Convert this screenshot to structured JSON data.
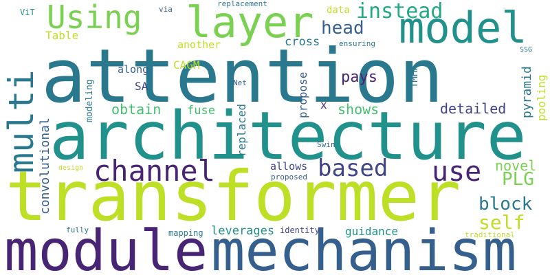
{
  "words": {
    "attention": "attention",
    "architecture": "architecture",
    "transformer": "transformer",
    "module": "module",
    "mechanism": "mechanism",
    "multi": "multi",
    "using": "Using",
    "layer": "layer",
    "model": "model",
    "instead": "instead",
    "head": "head",
    "channel": "channel",
    "based": "based",
    "use": "use",
    "block": "block",
    "self": "self",
    "plg": "PLG",
    "novel": "novel",
    "detailed": "detailed",
    "shows": "shows",
    "pays": "pays",
    "obtain": "obtain",
    "fuse": "fuse",
    "convolutional": "convolutional",
    "cross": "cross",
    "another": "another",
    "ensuring": "ensuring",
    "data": "data",
    "replacement": "replacement",
    "via": "via",
    "vit": "ViT",
    "table": "Table",
    "cagm": "CAGM",
    "along": "along",
    "net": "Net",
    "sa": "SA",
    "x": "x",
    "ssg": "SSG",
    "swin": "Swin",
    "allows": "allows",
    "proposed": "proposed",
    "design": "design",
    "leverages": "leverages",
    "identity": "identity",
    "guidance": "guidance",
    "mapping": "mapping",
    "fully": "fully",
    "traditional": "traditional",
    "modeling": "modeling",
    "replaced": "replaced",
    "propose": "propose",
    "tmha": "TMHA",
    "pyramid": "pyramid",
    "pooling": "pooling"
  },
  "colors": {
    "yellow_green": "#bddf26",
    "light_green": "#7ad151",
    "green": "#44bf70",
    "teal_green": "#22a884",
    "teal": "#21918c",
    "blue_teal": "#2a788e",
    "slate_blue": "#355f8d",
    "indigo": "#414487",
    "dark_purple": "#482475"
  }
}
